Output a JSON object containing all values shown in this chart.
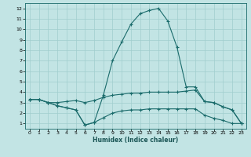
{
  "xlabel": "Humidex (Indice chaleur)",
  "bg_color": "#c2e4e4",
  "line_color": "#1a6b6b",
  "grid_color": "#a0cece",
  "xlim": [
    -0.5,
    23.5
  ],
  "ylim": [
    0.5,
    12.5
  ],
  "xticks": [
    0,
    1,
    2,
    3,
    4,
    5,
    6,
    7,
    8,
    9,
    10,
    11,
    12,
    13,
    14,
    15,
    16,
    17,
    18,
    19,
    20,
    21,
    22,
    23
  ],
  "yticks": [
    1,
    2,
    3,
    4,
    5,
    6,
    7,
    8,
    9,
    10,
    11,
    12
  ],
  "line_upper_x": [
    0,
    1,
    2,
    3,
    4,
    5,
    6,
    7,
    8,
    9,
    10,
    11,
    12,
    13,
    14,
    15,
    16,
    17,
    18,
    19,
    20,
    21,
    22,
    23
  ],
  "line_upper_y": [
    3.3,
    3.3,
    3.0,
    2.7,
    2.5,
    2.3,
    0.85,
    1.1,
    3.7,
    7.0,
    8.8,
    10.5,
    11.5,
    11.8,
    12.0,
    10.8,
    8.3,
    4.5,
    4.5,
    3.1,
    3.0,
    2.6,
    2.3,
    1.0
  ],
  "line_mid_x": [
    0,
    1,
    2,
    3,
    4,
    5,
    6,
    7,
    8,
    9,
    10,
    11,
    12,
    13,
    14,
    15,
    16,
    17,
    18,
    19,
    20,
    21,
    22,
    23
  ],
  "line_mid_y": [
    3.3,
    3.3,
    3.0,
    3.0,
    3.1,
    3.2,
    3.0,
    3.2,
    3.5,
    3.7,
    3.8,
    3.9,
    3.9,
    4.0,
    4.0,
    4.0,
    4.0,
    4.1,
    4.2,
    3.1,
    3.0,
    2.6,
    2.3,
    1.0
  ],
  "line_lower_x": [
    0,
    1,
    2,
    3,
    4,
    5,
    6,
    7,
    8,
    9,
    10,
    11,
    12,
    13,
    14,
    15,
    16,
    17,
    18,
    19,
    20,
    21,
    22,
    23
  ],
  "line_lower_y": [
    3.3,
    3.3,
    3.0,
    2.7,
    2.5,
    2.3,
    0.85,
    1.1,
    1.55,
    2.0,
    2.2,
    2.3,
    2.3,
    2.4,
    2.4,
    2.4,
    2.4,
    2.4,
    2.4,
    1.8,
    1.5,
    1.3,
    1.0,
    1.0
  ]
}
